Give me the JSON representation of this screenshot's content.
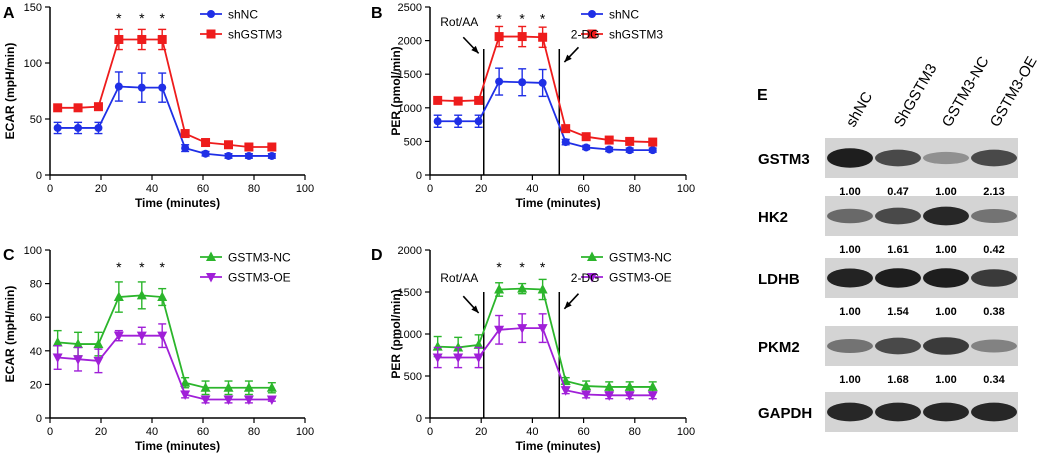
{
  "colors": {
    "blue": "#1f2fe6",
    "red": "#ee1c1c",
    "green": "#2bb52b",
    "purple": "#a01fd8",
    "axis": "#000000"
  },
  "chart_data": [
    {
      "id": "A",
      "panel_label": "A",
      "type": "line",
      "xlabel": "Time (minutes)",
      "ylabel": "ECAR (mpH/min)",
      "xlim": [
        0,
        100
      ],
      "ylim": [
        0,
        150
      ],
      "xticks": [
        0,
        20,
        40,
        60,
        80,
        100
      ],
      "yticks": [
        0,
        50,
        100,
        150
      ],
      "x": [
        3,
        11,
        19,
        27,
        36,
        44,
        53,
        61,
        70,
        78,
        87
      ],
      "series": [
        {
          "name": "shNC",
          "color": "#1f2fe6",
          "marker": "circle",
          "values": [
            42,
            42,
            42,
            79,
            78,
            78,
            24,
            19,
            17,
            17,
            17
          ],
          "err": [
            5,
            5,
            5,
            13,
            13,
            13,
            3,
            2,
            2,
            2,
            2
          ]
        },
        {
          "name": "shGSTM3",
          "color": "#ee1c1c",
          "marker": "square",
          "values": [
            60,
            60,
            61,
            121,
            121,
            121,
            37,
            29,
            27,
            25,
            25
          ],
          "err": [
            3,
            3,
            3,
            9,
            9,
            9,
            3,
            2,
            2,
            2,
            2
          ]
        }
      ],
      "stars": [
        "*",
        "*",
        "*"
      ],
      "star_x": [
        27,
        36,
        44
      ],
      "star_y": 140,
      "legend_position": "top-right",
      "annotations": []
    },
    {
      "id": "B",
      "panel_label": "B",
      "type": "line",
      "xlabel": "Time (minutes)",
      "ylabel": "PER (pmol/min)",
      "xlim": [
        0,
        100
      ],
      "ylim": [
        0,
        2500
      ],
      "xticks": [
        0,
        20,
        40,
        60,
        80,
        100
      ],
      "yticks": [
        0,
        500,
        1000,
        1500,
        2000,
        2500
      ],
      "x": [
        3,
        11,
        19,
        27,
        36,
        44,
        53,
        61,
        70,
        78,
        87
      ],
      "series": [
        {
          "name": "shNC",
          "color": "#1f2fe6",
          "marker": "circle",
          "values": [
            800,
            800,
            800,
            1390,
            1380,
            1370,
            490,
            410,
            380,
            370,
            370
          ],
          "err": [
            90,
            90,
            90,
            200,
            200,
            200,
            40,
            30,
            30,
            30,
            30
          ]
        },
        {
          "name": "shGSTM3",
          "color": "#ee1c1c",
          "marker": "square",
          "values": [
            1110,
            1100,
            1110,
            2060,
            2060,
            2050,
            690,
            570,
            520,
            500,
            490
          ],
          "err": [
            40,
            40,
            40,
            150,
            150,
            150,
            40,
            30,
            30,
            30,
            30
          ]
        }
      ],
      "stars": [
        "*",
        "*",
        "*"
      ],
      "star_x": [
        27,
        36,
        44
      ],
      "star_y": 2330,
      "legend_position": "top-right",
      "vlines": [
        21,
        50.5
      ],
      "annotations": [
        {
          "text": "Rot/AA",
          "tx": 4,
          "ty": 2220,
          "ax1": 13,
          "ay1": 2050,
          "ax2": 19,
          "ay2": 1810
        },
        {
          "text": "2-DG",
          "tx": 55,
          "ty": 2030,
          "ax1": 58,
          "ay1": 1900,
          "ax2": 52.5,
          "ay2": 1680
        }
      ]
    },
    {
      "id": "C",
      "panel_label": "C",
      "type": "line",
      "xlabel": "Time (minutes)",
      "ylabel": "ECAR (mpH/min)",
      "xlim": [
        0,
        100
      ],
      "ylim": [
        0,
        100
      ],
      "xticks": [
        0,
        20,
        40,
        60,
        80,
        100
      ],
      "yticks": [
        0,
        20,
        40,
        60,
        80,
        100
      ],
      "x": [
        3,
        11,
        19,
        27,
        36,
        44,
        53,
        61,
        70,
        78,
        87
      ],
      "series": [
        {
          "name": "GSTM3-NC",
          "color": "#2bb52b",
          "marker": "triangle-up",
          "values": [
            45,
            44,
            44,
            72,
            73,
            72,
            21,
            18,
            18,
            18,
            18
          ],
          "err": [
            7,
            7,
            7,
            9,
            8,
            5,
            3,
            4,
            4,
            4,
            3
          ]
        },
        {
          "name": "GSTM3-OE",
          "color": "#a01fd8",
          "marker": "triangle-down",
          "values": [
            36,
            35,
            34,
            49,
            49,
            49,
            14,
            11,
            11,
            11,
            11
          ],
          "err": [
            7,
            7,
            7,
            3,
            5,
            7,
            2,
            2,
            2,
            2,
            1
          ]
        }
      ],
      "stars": [
        "*",
        "*",
        "*"
      ],
      "star_x": [
        27,
        36,
        44
      ],
      "star_y": 90,
      "legend_position": "top-right",
      "annotations": []
    },
    {
      "id": "D",
      "panel_label": "D",
      "type": "line",
      "xlabel": "Time (minutes)",
      "ylabel": "PER (pmol/min)",
      "xlim": [
        0,
        100
      ],
      "ylim": [
        0,
        2000
      ],
      "xticks": [
        0,
        20,
        40,
        60,
        80,
        100
      ],
      "yticks": [
        0,
        500,
        1000,
        1500,
        2000
      ],
      "x": [
        3,
        11,
        19,
        27,
        36,
        44,
        53,
        61,
        70,
        78,
        87
      ],
      "series": [
        {
          "name": "GSTM3-NC",
          "color": "#2bb52b",
          "marker": "triangle-up",
          "values": [
            850,
            840,
            870,
            1530,
            1540,
            1530,
            440,
            380,
            370,
            370,
            370
          ],
          "err": [
            120,
            120,
            120,
            80,
            60,
            120,
            40,
            60,
            60,
            60,
            60
          ]
        },
        {
          "name": "GSTM3-OE",
          "color": "#a01fd8",
          "marker": "triangle-down",
          "values": [
            720,
            720,
            720,
            1050,
            1070,
            1070,
            330,
            280,
            270,
            270,
            270
          ],
          "err": [
            120,
            120,
            120,
            170,
            170,
            170,
            40,
            40,
            40,
            40,
            40
          ]
        }
      ],
      "stars": [
        "*",
        "*",
        "*"
      ],
      "star_x": [
        27,
        36,
        44
      ],
      "star_y": 1800,
      "legend_position": "top-right",
      "vlines": [
        21,
        50.5
      ],
      "annotations": [
        {
          "text": "Rot/AA",
          "tx": 4,
          "ty": 1620,
          "ax1": 13,
          "ay1": 1450,
          "ax2": 19,
          "ay2": 1250
        },
        {
          "text": "2-DG",
          "tx": 55,
          "ty": 1620,
          "ax1": 58,
          "ay1": 1480,
          "ax2": 52.5,
          "ay2": 1300
        }
      ]
    }
  ],
  "blot": {
    "panel_label": "E",
    "lanes": [
      "shNC",
      "ShGSTM3",
      "GSTM3-NC",
      "GSTM3-OE"
    ],
    "proteins": [
      {
        "name": "GSTM3",
        "quant": [
          "1.00",
          "0.47",
          "1.00",
          "2.13"
        ],
        "intensity": [
          0.95,
          0.72,
          0.35,
          0.72
        ]
      },
      {
        "name": "HK2",
        "quant": [
          "1.00",
          "1.61",
          "1.00",
          "0.42"
        ],
        "intensity": [
          0.55,
          0.72,
          0.9,
          0.5
        ]
      },
      {
        "name": "LDHB",
        "quant": [
          "1.00",
          "1.54",
          "1.00",
          "0.38"
        ],
        "intensity": [
          0.92,
          0.95,
          0.95,
          0.8
        ]
      },
      {
        "name": "PKM2",
        "quant": [
          "1.00",
          "1.68",
          "1.00",
          "0.34"
        ],
        "intensity": [
          0.5,
          0.72,
          0.8,
          0.42
        ]
      },
      {
        "name": "GAPDH",
        "quant": null,
        "intensity": [
          0.9,
          0.9,
          0.9,
          0.9
        ]
      }
    ]
  }
}
